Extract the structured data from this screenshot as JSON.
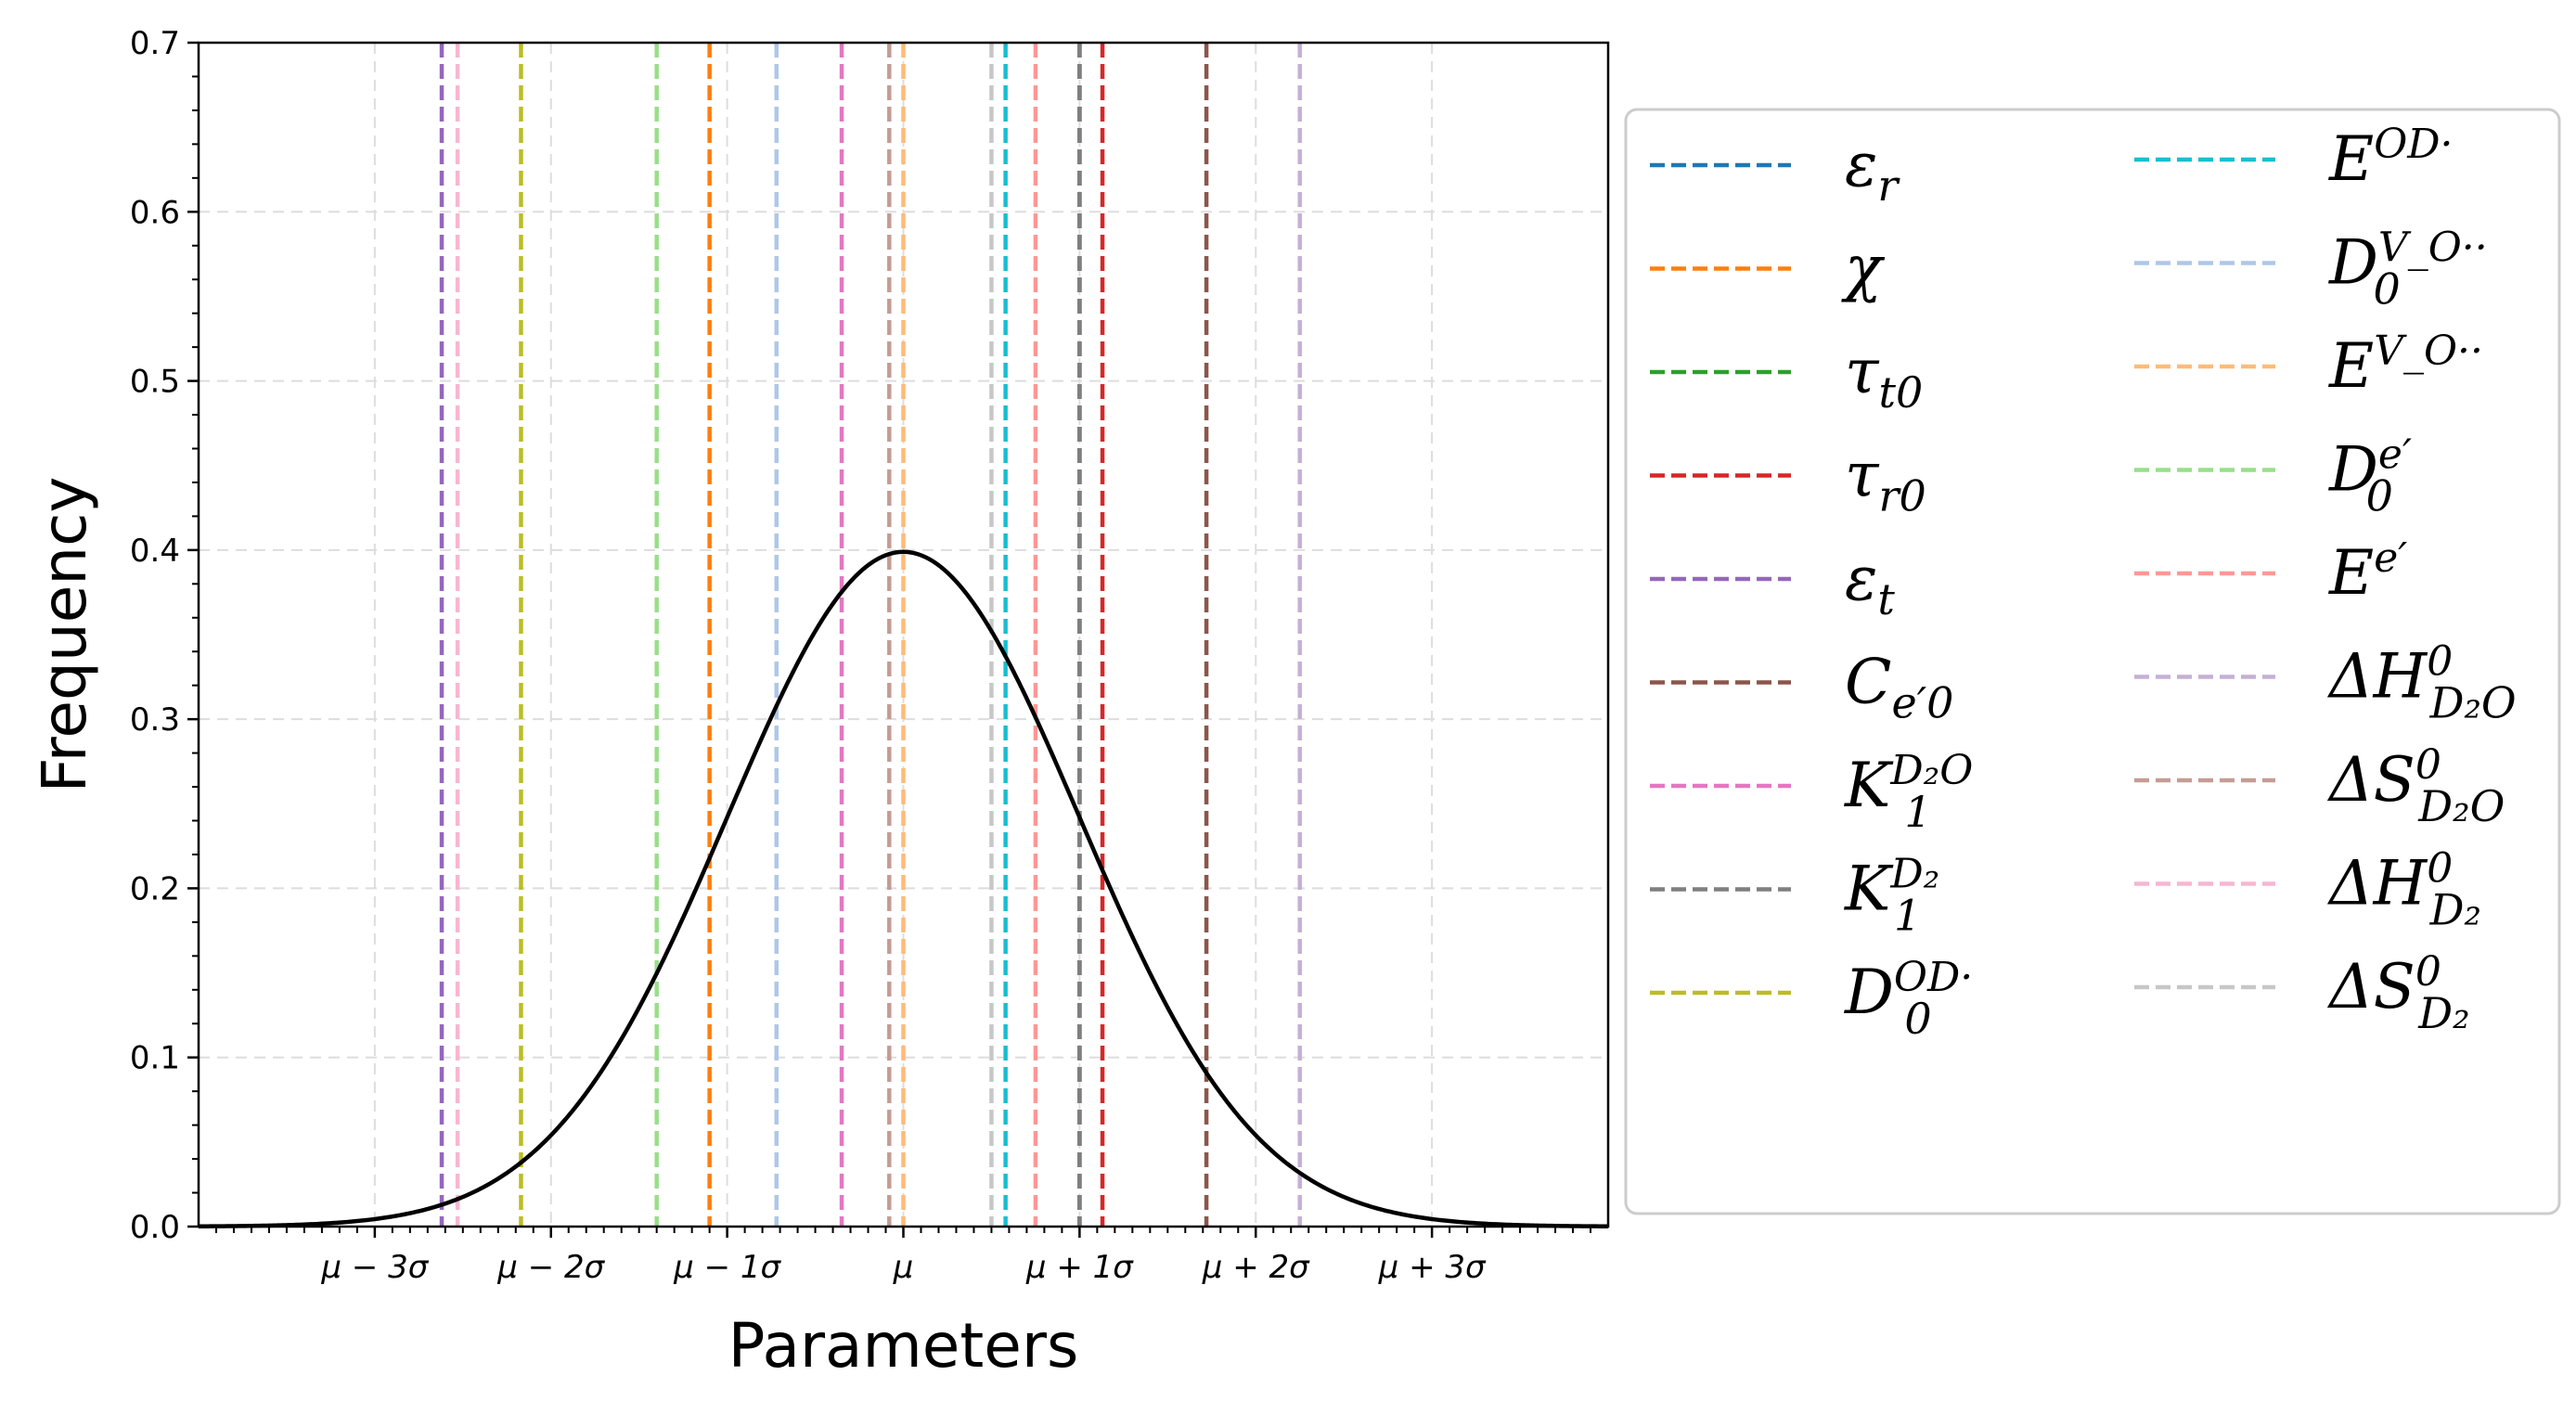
{
  "chart_data": {
    "type": "line",
    "title": "",
    "xlabel": "Parameters",
    "ylabel": "Frequency",
    "xlim": [
      -4,
      4
    ],
    "ylim": [
      0,
      0.7
    ],
    "grid": true,
    "x_ticks": [
      {
        "value": -3,
        "label": "μ − 3σ"
      },
      {
        "value": -2,
        "label": "μ − 2σ"
      },
      {
        "value": -1,
        "label": "μ − 1σ"
      },
      {
        "value": 0,
        "label": "μ"
      },
      {
        "value": 1,
        "label": "μ + 1σ"
      },
      {
        "value": 2,
        "label": "μ + 2σ"
      },
      {
        "value": 3,
        "label": "μ + 3σ"
      }
    ],
    "y_ticks": [
      {
        "value": 0.0,
        "label": "0.0"
      },
      {
        "value": 0.1,
        "label": "0.1"
      },
      {
        "value": 0.2,
        "label": "0.2"
      },
      {
        "value": 0.3,
        "label": "0.3"
      },
      {
        "value": 0.4,
        "label": "0.4"
      },
      {
        "value": 0.5,
        "label": "0.5"
      },
      {
        "value": 0.6,
        "label": "0.6"
      },
      {
        "value": 0.7,
        "label": "0.7"
      }
    ],
    "curve": {
      "distribution": "standard normal pdf",
      "color": "#000000"
    },
    "legend_position": "outside right",
    "legend_columns": 2,
    "parameters": [
      {
        "name": "εr",
        "sym": "ε",
        "sub": "r",
        "sup": "",
        "x": 1.0,
        "color": "#1f77b4"
      },
      {
        "name": "χ",
        "sym": "χ",
        "sub": "",
        "sup": "",
        "x": -1.1,
        "color": "#ff7f0e"
      },
      {
        "name": "τt0",
        "sym": "τ",
        "sub": "t0",
        "sup": "",
        "x": 1.0,
        "color": "#2ca02c"
      },
      {
        "name": "τr0",
        "sym": "τ",
        "sub": "r0",
        "sup": "",
        "x": 1.13,
        "color": "#d62728"
      },
      {
        "name": "εt",
        "sym": "ε",
        "sub": "t",
        "sup": "",
        "x": -2.62,
        "color": "#9467bd"
      },
      {
        "name": "Ce'0",
        "sym": "C",
        "sub": "e′0",
        "sup": "",
        "x": 1.72,
        "color": "#8c564b"
      },
      {
        "name": "K1D2O",
        "sym": "K",
        "sub": "1",
        "sup": "D₂O",
        "x": -0.35,
        "color": "#e377c2"
      },
      {
        "name": "K1D2",
        "sym": "K",
        "sub": "1",
        "sup": "D₂",
        "x": 1.0,
        "color": "#7f7f7f"
      },
      {
        "name": "D0OD",
        "sym": "D",
        "sub": "0",
        "sup": "OD·",
        "x": -2.17,
        "color": "#bcbd22"
      },
      {
        "name": "EOD",
        "sym": "E",
        "sub": "",
        "sup": "OD·",
        "x": 0.58,
        "color": "#17becf"
      },
      {
        "name": "D0VO",
        "sym": "D",
        "sub": "0",
        "sup": "V_O··",
        "x": -0.72,
        "color": "#aec7e8"
      },
      {
        "name": "EVO",
        "sym": "E",
        "sub": "",
        "sup": "V_O··",
        "x": 0.0,
        "color": "#ffbb78"
      },
      {
        "name": "D0e'",
        "sym": "D",
        "sub": "0",
        "sup": "e′",
        "x": -1.4,
        "color": "#98df8a"
      },
      {
        "name": "Ee'",
        "sym": "E",
        "sub": "",
        "sup": "e′",
        "x": 0.75,
        "color": "#ff9896"
      },
      {
        "name": "ΔH0D2O",
        "sym": "ΔH",
        "sub": "D₂O",
        "sup": "0",
        "x": 2.25,
        "color": "#c5b0d5"
      },
      {
        "name": "ΔS0D2O",
        "sym": "ΔS",
        "sub": "D₂O",
        "sup": "0",
        "x": -0.08,
        "color": "#c49c94"
      },
      {
        "name": "ΔH0D2",
        "sym": "ΔH",
        "sub": "D₂",
        "sup": "0",
        "x": -2.53,
        "color": "#f7b6d2"
      },
      {
        "name": "ΔS0D2",
        "sym": "ΔS",
        "sub": "D₂",
        "sup": "0",
        "x": 0.5,
        "color": "#c7c7c7"
      }
    ]
  }
}
